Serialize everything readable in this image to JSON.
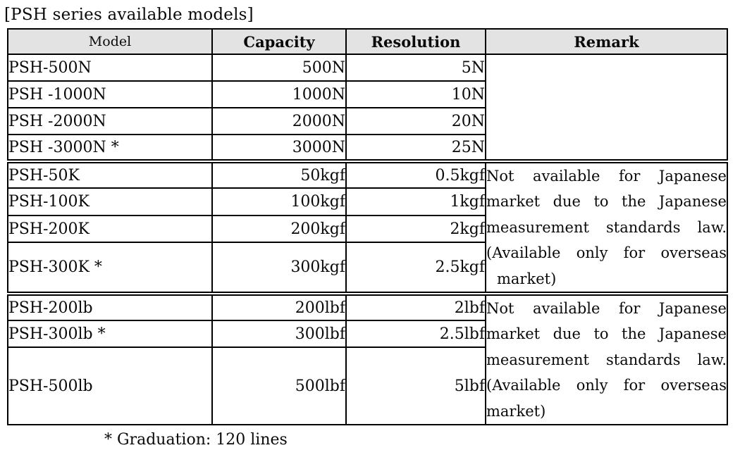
{
  "title": "[PSH series available models]",
  "footnote": "* Graduation: 120 lines",
  "table": {
    "headers": [
      "Model",
      "Capacity",
      "Resolution",
      "Remark"
    ],
    "sections": [
      {
        "rows": [
          {
            "model": "PSH-500N",
            "capacity": "500N",
            "resolution": "5N"
          },
          {
            "model": "PSH -1000N",
            "capacity": "1000N",
            "resolution": "10N"
          },
          {
            "model": "PSH -2000N",
            "capacity": "2000N",
            "resolution": "20N"
          },
          {
            "model": "PSH -3000N *",
            "capacity": "3000N",
            "resolution": "25N"
          }
        ],
        "remark": ""
      },
      {
        "rows": [
          {
            "model": "PSH-50K",
            "capacity": "50kgf",
            "resolution": "0.5kgf"
          },
          {
            "model": "PSH-100K",
            "capacity": "100kgf",
            "resolution": "1kgf"
          },
          {
            "model": "PSH-200K",
            "capacity": "200kgf",
            "resolution": "2kgf"
          },
          {
            "model": "PSH-300K *",
            "capacity": "300kgf",
            "resolution": "2.5kgf"
          }
        ],
        "remark_lines": [
          "Not available for Japanese",
          "market due to the Japanese",
          "measurement standards law.",
          "(Available only for overseas",
          "market)"
        ]
      },
      {
        "rows": [
          {
            "model": "PSH-200lb",
            "capacity": "200lbf",
            "resolution": "2lbf"
          },
          {
            "model": "PSH-300lb *",
            "capacity": "300lbf",
            "resolution": "2.5lbf"
          },
          {
            "model": "PSH-500lb",
            "capacity": "500lbf",
            "resolution": "5lbf"
          }
        ],
        "remark_lines": [
          "Not available for Japanese",
          "market due to the Japanese",
          "measurement standards law.",
          "(Available only for overseas",
          "market)"
        ]
      }
    ]
  }
}
